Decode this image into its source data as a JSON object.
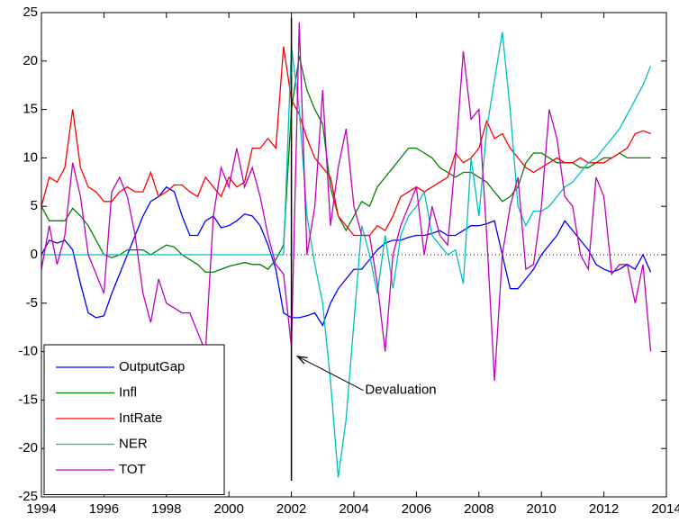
{
  "chart_data": {
    "type": "line",
    "x": [
      1994,
      1994.25,
      1994.5,
      1994.75,
      1995,
      1995.25,
      1995.5,
      1995.75,
      1996,
      1996.25,
      1996.5,
      1996.75,
      1997,
      1997.25,
      1997.5,
      1997.75,
      1998,
      1998.25,
      1998.5,
      1998.75,
      1999,
      1999.25,
      1999.5,
      1999.75,
      2000,
      2000.25,
      2000.5,
      2000.75,
      2001,
      2001.25,
      2001.5,
      2001.75,
      2002,
      2002.25,
      2002.5,
      2002.75,
      2003,
      2003.25,
      2003.5,
      2003.75,
      2004,
      2004.25,
      2004.5,
      2004.75,
      2005,
      2005.25,
      2005.5,
      2005.75,
      2006,
      2006.25,
      2006.5,
      2006.75,
      2007,
      2007.25,
      2007.5,
      2007.75,
      2008,
      2008.25,
      2008.5,
      2008.75,
      2009,
      2009.25,
      2009.5,
      2009.75,
      2010,
      2010.25,
      2010.5,
      2010.75,
      2011,
      2011.25,
      2011.5,
      2011.75,
      2012,
      2012.25,
      2012.5,
      2012.75,
      2013,
      2013.25,
      2013.5
    ],
    "series": [
      {
        "name": "OutputGap",
        "color": "#0000ff",
        "values": [
          0,
          1.5,
          1.2,
          1.5,
          0.5,
          -3,
          -6,
          -6.5,
          -6.3,
          -4,
          -2,
          0,
          2,
          4,
          5.5,
          6,
          7,
          6.5,
          4,
          2,
          2,
          3.5,
          4,
          2.8,
          3,
          3.5,
          4.2,
          4,
          3,
          1,
          -1.5,
          -6,
          -6.5,
          -6.5,
          -6.3,
          -6,
          -7.3,
          -5,
          -3.5,
          -2.5,
          -1.5,
          -1.5,
          -0.5,
          0.5,
          1.2,
          1.5,
          1.5,
          1.8,
          2,
          2,
          2.2,
          2.5,
          2,
          2,
          2.5,
          3,
          3,
          3.2,
          3.5,
          0,
          -3.5,
          -3.5,
          -2.5,
          -1.5,
          0,
          1,
          2,
          3.5,
          2.5,
          1.5,
          0.5,
          -1,
          -1.5,
          -1.8,
          -1.5,
          -1,
          -1.5,
          0,
          -1.8
        ]
      },
      {
        "name": "Infl",
        "color": "#008000",
        "values": [
          5,
          3.5,
          3.5,
          3.5,
          4.8,
          4,
          3,
          1.5,
          0,
          -0.3,
          0,
          0.5,
          0.5,
          0.5,
          0,
          0.5,
          1,
          0.8,
          0,
          -0.5,
          -1,
          -1.8,
          -1.8,
          -1.5,
          -1.2,
          -1,
          -0.8,
          -1,
          -1,
          -1.5,
          -0.5,
          1,
          15,
          20.5,
          17,
          15,
          13.5,
          7,
          4,
          2.5,
          4,
          5.5,
          5,
          7,
          8,
          9,
          10,
          11,
          11,
          10.5,
          10,
          9,
          8.5,
          8,
          8.5,
          8.5,
          8,
          7.5,
          6.5,
          5.5,
          6,
          7,
          9.5,
          10.5,
          10.5,
          10,
          9.5,
          9.5,
          9.5,
          9,
          9,
          9.5,
          10,
          10,
          10.5,
          10,
          10,
          10,
          10
        ]
      },
      {
        "name": "IntRate",
        "color": "#ff0000",
        "values": [
          5,
          8,
          7.5,
          9,
          15,
          9,
          7,
          6.5,
          5.5,
          5.5,
          6.5,
          7,
          6.5,
          6.5,
          8.5,
          6,
          6.5,
          7.2,
          7.2,
          6.5,
          6,
          8,
          7,
          6,
          8,
          7,
          7.5,
          11,
          11,
          12,
          11,
          21.5,
          16,
          14.5,
          12,
          10,
          9,
          8,
          4,
          3,
          2,
          2,
          2,
          3,
          2.5,
          4,
          6,
          6.5,
          7,
          6.5,
          7,
          7.5,
          8,
          10.5,
          9.5,
          10,
          11,
          13.8,
          12,
          12.5,
          11,
          10,
          9,
          8.5,
          9,
          9.5,
          10,
          9.5,
          9.5,
          10,
          9.5,
          9.5,
          9.5,
          10,
          10.5,
          11,
          12.5,
          12.8,
          12.5
        ]
      },
      {
        "name": "NER",
        "color": "#00bfbf",
        "values": [
          0,
          0,
          0,
          0,
          0,
          0,
          0,
          0,
          0,
          0,
          0,
          0,
          0,
          0,
          0,
          0,
          0,
          0,
          0,
          0,
          0,
          0,
          0,
          0,
          0,
          0,
          0,
          0,
          0,
          0,
          0,
          0,
          21.5,
          15,
          4,
          -1,
          -5,
          -13,
          -23,
          -17,
          -7,
          3,
          0,
          -4,
          2,
          -3.5,
          2,
          4,
          5,
          6.5,
          2,
          1,
          0,
          0.5,
          -3,
          10,
          4,
          13,
          18,
          23,
          15,
          5,
          3,
          4.5,
          4.5,
          5,
          6,
          7,
          7.5,
          8.5,
          9.5,
          10,
          11,
          12,
          13,
          14.5,
          16,
          17.5,
          19.5
        ]
      },
      {
        "name": "TOT",
        "color": "#bf00bf",
        "values": [
          -1.5,
          3,
          -1,
          2,
          9.5,
          6,
          0,
          -2,
          -4,
          6.5,
          8,
          6,
          2,
          -4,
          -7,
          -2.5,
          -5,
          -5.5,
          -6,
          -6,
          -8,
          -10,
          4,
          9,
          7,
          11,
          7,
          9,
          6,
          2,
          -1,
          -2,
          -9.5,
          24,
          0,
          5,
          17,
          3,
          9,
          13,
          5,
          2,
          2,
          -3,
          -10,
          0,
          3,
          5,
          7,
          0,
          5,
          2,
          1,
          10,
          21,
          14,
          15,
          2,
          -13,
          0,
          5,
          8,
          -1.5,
          -1,
          5,
          15,
          12,
          6,
          5,
          0,
          -1.5,
          8,
          6,
          -2,
          -1,
          -1,
          -5,
          -1,
          -10
        ]
      }
    ],
    "xlim": [
      1994,
      2014
    ],
    "ylim": [
      -25,
      25
    ],
    "xticks": [
      1994,
      1996,
      1998,
      2000,
      2002,
      2004,
      2006,
      2008,
      2010,
      2012,
      2014
    ],
    "yticks": [
      -25,
      -20,
      -15,
      -10,
      -5,
      0,
      5,
      10,
      15,
      20,
      25
    ],
    "vline": 2002,
    "annotation": {
      "text": "Devaluation",
      "xy": [
        2002.2,
        -10.5
      ],
      "xytext": [
        2004.3,
        -14
      ]
    },
    "legend": "lower left"
  }
}
